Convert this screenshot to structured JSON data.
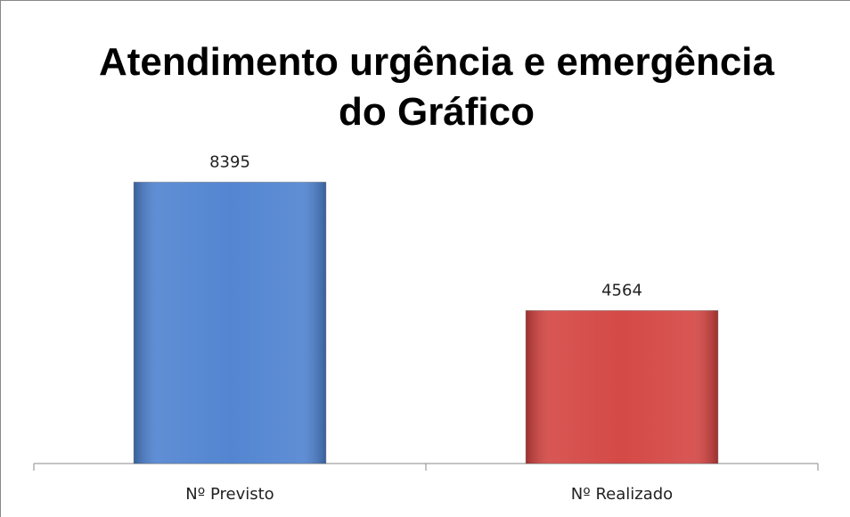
{
  "chart_data": {
    "type": "bar",
    "title": "Atendimento urgência e emergência do Gráfico",
    "categories": [
      "Nº Previsto",
      "Nº Realizado"
    ],
    "values": [
      8395,
      4564
    ],
    "colors": [
      "#4a7fcf",
      "#d2403d"
    ],
    "ylim": [
      0,
      10000
    ]
  }
}
